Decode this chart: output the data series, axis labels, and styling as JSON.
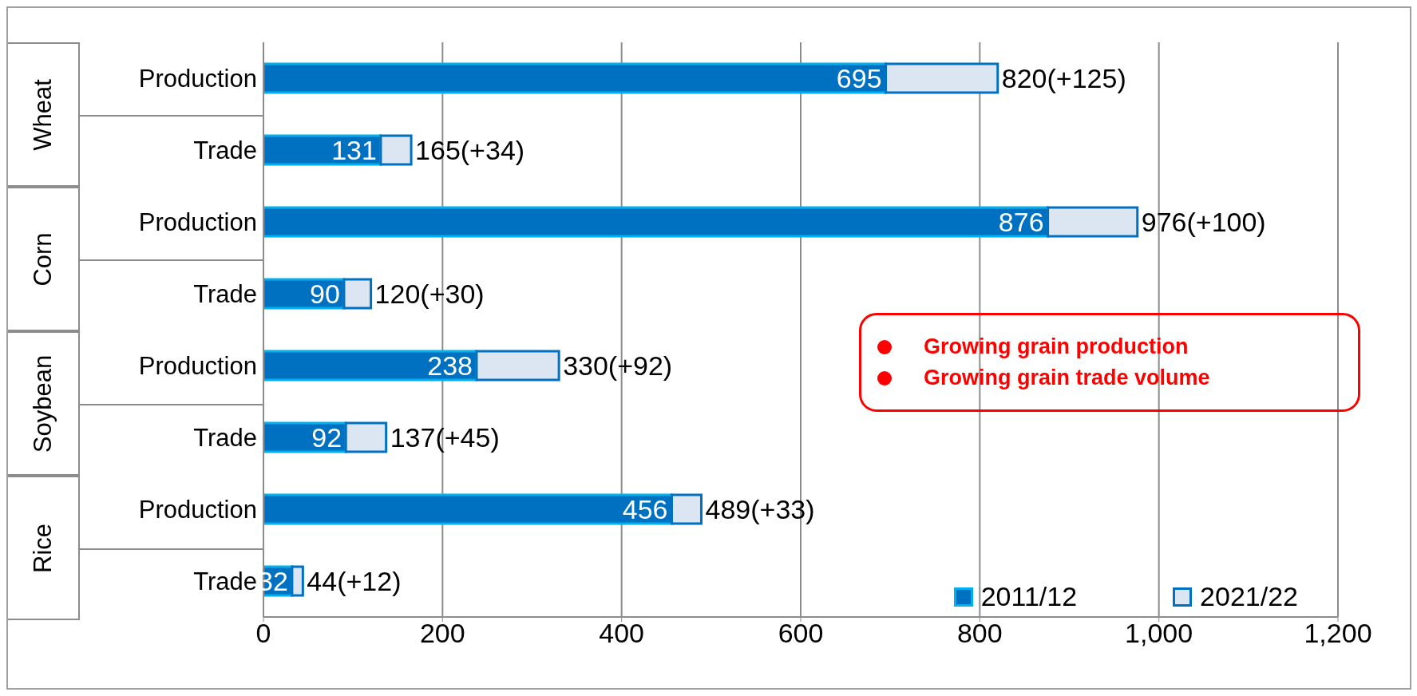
{
  "chart_data": {
    "type": "bar",
    "orientation": "horizontal",
    "stacked": true,
    "categories": [
      "Production",
      "Trade",
      "Production",
      "Trade",
      "Production",
      "Trade",
      "Production",
      "Trade"
    ],
    "series": [
      {
        "name": "2011/12",
        "color": "#0070c0",
        "values": [
          695,
          131,
          876,
          90,
          238,
          92,
          456,
          32
        ],
        "data_labels": true
      },
      {
        "name": "2021/22",
        "color": "#dce6f2",
        "values": [
          125,
          34,
          100,
          30,
          92,
          45,
          33,
          12
        ],
        "value_labels": [
          "820(+125)",
          "165(+34)",
          "976(+100)",
          "120(+30)",
          "330(+92)",
          "137(+45)",
          "489(+33)",
          "44(+12)"
        ]
      }
    ],
    "xlim": [
      0,
      1200
    ],
    "xticks": [
      0,
      200,
      400,
      600,
      800,
      {
        "value": 1000,
        "label": "1,000"
      },
      {
        "value": 1200,
        "label": "1,200"
      }
    ],
    "grid": "x",
    "legend": "bottom right",
    "annotations": [
      "Wheat",
      "Corn",
      "Soybean",
      "Rice",
      "Growing grain production",
      "Growing grain trade volume"
    ]
  }
}
